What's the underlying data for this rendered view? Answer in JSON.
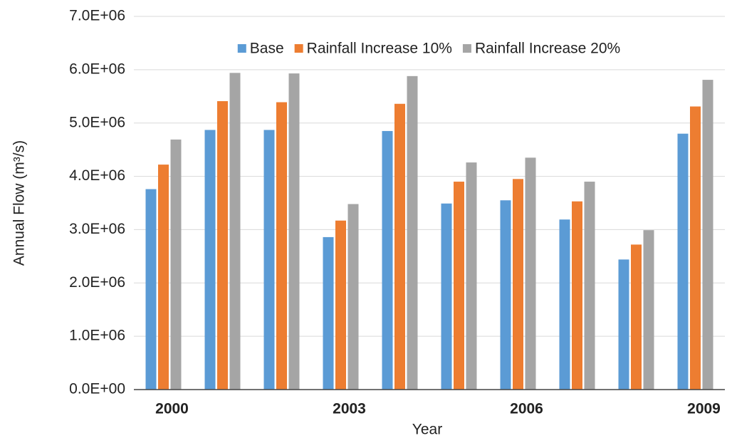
{
  "chart_data": {
    "type": "bar",
    "x_label": "Year",
    "y_label": "Annual Flow (m³/s)",
    "categories": [
      "2000",
      null,
      null,
      "2003",
      null,
      null,
      "2006",
      null,
      null,
      "2009"
    ],
    "series": [
      {
        "name": "Base",
        "color": "#5b9bd5",
        "values": [
          3760000,
          4870000,
          4870000,
          2860000,
          4850000,
          3490000,
          3550000,
          3190000,
          2440000,
          4800000
        ]
      },
      {
        "name": "Rainfall Increase 10%",
        "color": "#ed7d31",
        "values": [
          4220000,
          5410000,
          5390000,
          3170000,
          5360000,
          3900000,
          3950000,
          3530000,
          2720000,
          5310000
        ]
      },
      {
        "name": "Rainfall Increase 20%",
        "color": "#a5a5a5",
        "values": [
          4690000,
          5940000,
          5930000,
          3480000,
          5880000,
          4260000,
          4350000,
          3900000,
          2990000,
          5810000
        ]
      }
    ],
    "ylim": [
      0,
      7000000
    ],
    "yticks": [
      {
        "value": 0,
        "label": "0.0E+00"
      },
      {
        "value": 1000000,
        "label": "1.0E+06"
      },
      {
        "value": 2000000,
        "label": "2.0E+06"
      },
      {
        "value": 3000000,
        "label": "3.0E+06"
      },
      {
        "value": 4000000,
        "label": "4.0E+06"
      },
      {
        "value": 5000000,
        "label": "5.0E+06"
      },
      {
        "value": 6000000,
        "label": "6.0E+06"
      },
      {
        "value": 7000000,
        "label": "7.0E+06"
      }
    ],
    "grid": true,
    "legend": "top"
  }
}
